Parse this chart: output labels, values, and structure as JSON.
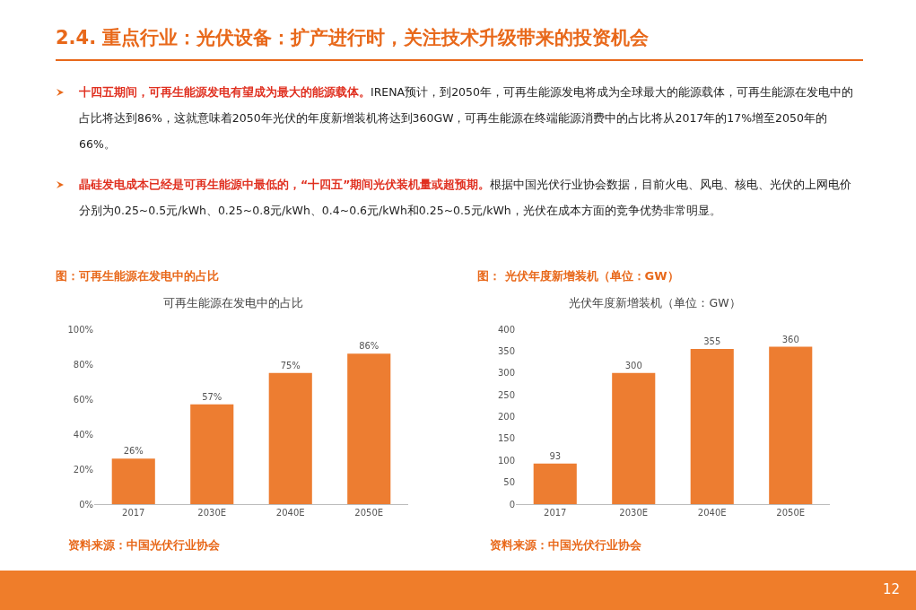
{
  "chart_data": [
    {
      "type": "other",
      "title": "2.4. 重点行业：光伏设备：扩产进行时，关注技术升级带来的投资机会",
      "annotations": [
        "十四五期间，可再生能源发电有望成为最大的能源载体。",
        "IRENA预计，到2050年，可再生能源发电将成为全球最大的能源载体，可再生能源在发电中的占比将达到86%，这就意味着2050年光伏的年度新增装机将达到360GW，可再生能源在终端能源消费中的占比将从2017年的17%增至2050年的66%。",
        "晶硅发电成本已经是可再生能源中最低的，“十四五”期间光伏装机量或超预期。",
        "根据中国光伏行业协会数据，目前火电、风电、核电、光伏的上网电价分别为0.25~0.5元/kWh、0.25~0.8元/kWh、0.4~0.6元/kWh和0.25~0.5元/kWh，光伏在成本方面的竞争优势非常明显。",
        "12"
      ]
    },
    {
      "type": "bar",
      "subtitle": "图：可再生能源在发电中的占比",
      "title": "可再生能源在发电中的占比",
      "categories": [
        "2017",
        "2030E",
        "2040E",
        "2050E"
      ],
      "values": [
        26,
        57,
        75,
        86
      ],
      "value_labels": [
        "26%",
        "57%",
        "75%",
        "86%"
      ],
      "color": "#ed7d31",
      "ylim": [
        0,
        100
      ],
      "yticks": [
        {
          "value": 0,
          "label": "0%"
        },
        {
          "value": 20,
          "label": "20%"
        },
        {
          "value": 40,
          "label": "40%"
        },
        {
          "value": 60,
          "label": "60%"
        },
        {
          "value": 80,
          "label": "80%"
        },
        {
          "value": 100,
          "label": "100%"
        }
      ],
      "annotations": [
        "资料来源：中国光伏行业协会"
      ]
    },
    {
      "type": "bar",
      "subtitle": "图： 光伏年度新增装机（单位：GW）",
      "title": "光伏年度新增装机（单位：GW）",
      "categories": [
        "2017",
        "2030E",
        "2040E",
        "2050E"
      ],
      "values": [
        93,
        300,
        355,
        360
      ],
      "data_labels": true,
      "color": "#ed7d31",
      "ylim": [
        0,
        400
      ],
      "yticks": [
        0,
        50,
        100,
        150,
        200,
        250,
        300,
        350,
        400
      ],
      "annotations": [
        "资料来源：中国光伏行业协会"
      ]
    }
  ]
}
